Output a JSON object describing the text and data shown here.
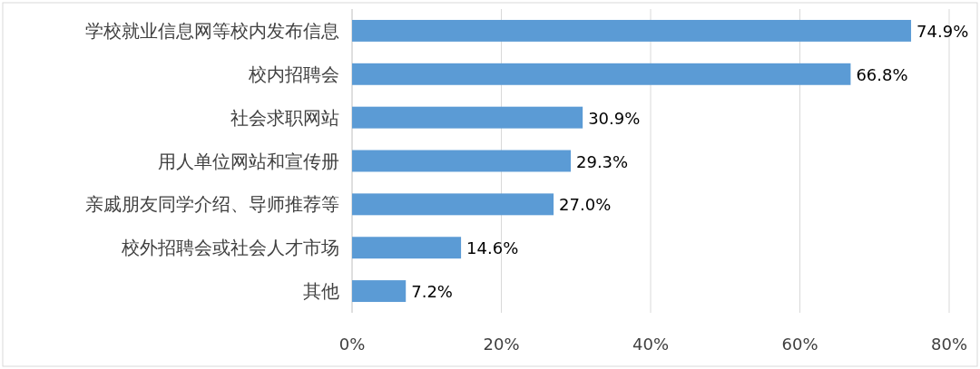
{
  "chart_data": {
    "type": "bar",
    "orientation": "horizontal",
    "categories": [
      "学校就业信息网等校内发布信息",
      "校内招聘会",
      "社会求职网站",
      "用人单位网站和宣传册",
      "亲戚朋友同学介绍、导师推荐等",
      "校外招聘会或社会人才市场",
      "其他"
    ],
    "values": [
      74.9,
      66.8,
      30.9,
      29.3,
      27.0,
      14.6,
      7.2
    ],
    "value_labels": [
      "74.9%",
      "66.8%",
      "30.9%",
      "29.3%",
      "27.0%",
      "14.6%",
      "7.2%"
    ],
    "color": "#5b9bd5",
    "xlim": [
      0,
      80
    ],
    "xticks": [
      {
        "value": 0,
        "label": "0%"
      },
      {
        "value": 20,
        "label": "20%"
      },
      {
        "value": 40,
        "label": "40%"
      },
      {
        "value": 60,
        "label": "60%"
      },
      {
        "value": 80,
        "label": "80%"
      }
    ],
    "grid": "x"
  }
}
